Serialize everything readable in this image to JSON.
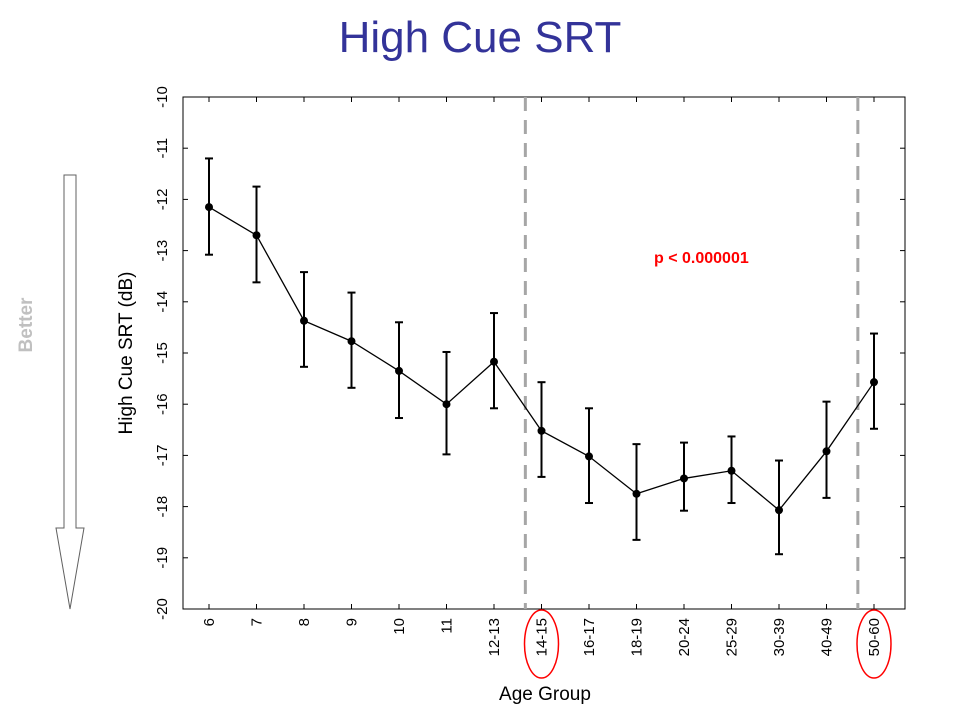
{
  "chart_data": {
    "type": "line",
    "title": "High Cue SRT",
    "xlabel": "Age Group",
    "ylabel": "High Cue SRT (dB)",
    "categories": [
      "6",
      "7",
      "8",
      "9",
      "10",
      "11",
      "12-13",
      "14-15",
      "16-17",
      "18-19",
      "20-24",
      "25-29",
      "30-39",
      "40-49",
      "50-60"
    ],
    "series": [
      {
        "values": [
          -12.15,
          -12.7,
          -14.37,
          -14.77,
          -15.35,
          -16.0,
          -15.17,
          -16.52,
          -17.02,
          -17.75,
          -17.45,
          -17.3,
          -18.07,
          -16.92,
          -15.57
        ],
        "error_low": [
          -13.08,
          -13.62,
          -15.27,
          -15.68,
          -16.27,
          -16.98,
          -16.08,
          -17.42,
          -17.93,
          -18.65,
          -18.08,
          -17.93,
          -18.93,
          -17.83,
          -16.48
        ],
        "error_high": [
          -11.2,
          -11.75,
          -13.42,
          -13.82,
          -14.4,
          -14.98,
          -14.22,
          -15.57,
          -16.08,
          -16.78,
          -16.75,
          -16.63,
          -17.1,
          -15.95,
          -14.62
        ]
      }
    ],
    "ylim": [
      -20,
      -10
    ],
    "yticks": [
      "-10",
      "-11",
      "-12",
      "-13",
      "-14",
      "-15",
      "-16",
      "-17",
      "-18",
      "-19",
      "-20"
    ],
    "grid": false,
    "annotations": {
      "p_value": "p < 0.000001",
      "better": "Better",
      "dashed_dividers_between": [
        [
          "12-13",
          "14-15"
        ],
        [
          "40-49",
          "50-60"
        ]
      ],
      "circled_categories": [
        "14-15",
        "50-60"
      ]
    },
    "colors": {
      "title": "#333399",
      "line": "#000000",
      "divider": "#a6a6a6",
      "circle": "#ff0000",
      "annotation": "#ff0000",
      "better": "#c0c0c0"
    }
  }
}
